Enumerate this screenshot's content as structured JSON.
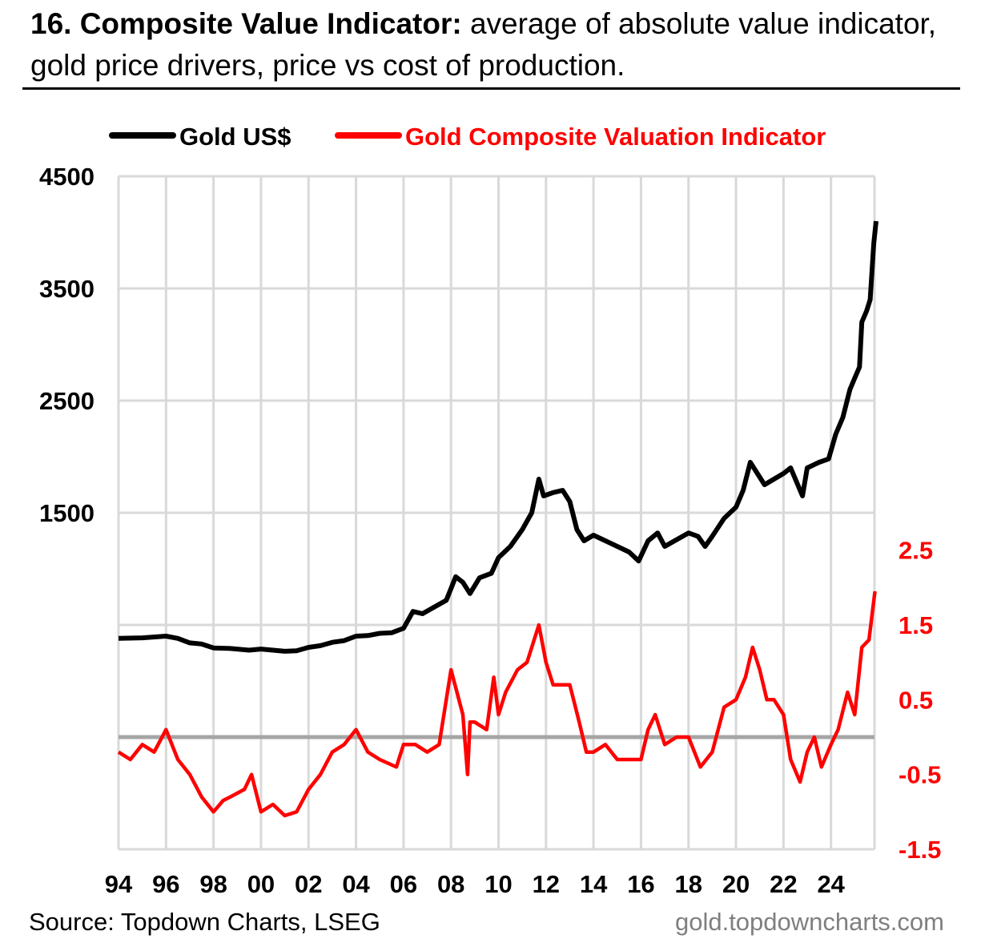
{
  "title": {
    "bold": "16. Composite Value Indicator:",
    "rest": " average of absolute value indicator, gold price drivers, price vs cost of production."
  },
  "footer": {
    "source": "Source: Topdown Charts, LSEG",
    "site": "gold.topdowncharts.com"
  },
  "colors": {
    "gold": "#000000",
    "composite": "#ff0000",
    "grid": "#d9d9d9",
    "zero": "#a6a6a6"
  },
  "chart_data": {
    "type": "line",
    "legend": [
      "Gold US$",
      "Gold Composite Valuation Indicator"
    ],
    "legend_position": "top",
    "x_ticks": [
      "94",
      "96",
      "98",
      "00",
      "02",
      "04",
      "06",
      "08",
      "10",
      "12",
      "14",
      "16",
      "18",
      "20",
      "22",
      "24"
    ],
    "xlim": [
      1994,
      2026
    ],
    "y_left": {
      "ticks": [
        "4500",
        "3500",
        "2500",
        "1500"
      ],
      "ylim": [
        -1500,
        4500
      ]
    },
    "y_right": {
      "ticks": [
        "2.5",
        "1.5",
        "0.5",
        "-0.5",
        "-1.5"
      ],
      "ylim": [
        -1.5,
        7.5
      ]
    },
    "series": [
      {
        "name": "Gold US$",
        "axis": "left",
        "x": [
          1994,
          1995,
          1996,
          1996.5,
          1997,
          1997.5,
          1998,
          1998.7,
          1999.5,
          2000,
          2000.5,
          2001,
          2001.5,
          2002,
          2002.5,
          2003,
          2003.5,
          2004,
          2004.5,
          2005,
          2005.5,
          2006,
          2006.4,
          2006.8,
          2007.3,
          2007.8,
          2008.2,
          2008.5,
          2008.8,
          2009.2,
          2009.7,
          2010,
          2010.5,
          2011,
          2011.4,
          2011.7,
          2011.9,
          2012.3,
          2012.7,
          2013,
          2013.3,
          2013.6,
          2014,
          2014.5,
          2015,
          2015.5,
          2015.9,
          2016.3,
          2016.7,
          2017,
          2017.5,
          2018,
          2018.4,
          2018.7,
          2019,
          2019.5,
          2020,
          2020.3,
          2020.6,
          2020.9,
          2021.2,
          2021.6,
          2022,
          2022.3,
          2022.8,
          2023,
          2023.5,
          2023.9,
          2024.2,
          2024.5,
          2024.8,
          2025,
          2025.2,
          2025.3,
          2025.5,
          2025.65,
          2025.8,
          2025.9
        ],
        "values": [
          380,
          385,
          400,
          380,
          340,
          330,
          295,
          290,
          275,
          285,
          275,
          265,
          270,
          300,
          315,
          345,
          360,
          400,
          405,
          425,
          430,
          470,
          620,
          600,
          660,
          720,
          930,
          880,
          780,
          920,
          960,
          1100,
          1200,
          1350,
          1500,
          1800,
          1650,
          1680,
          1700,
          1600,
          1350,
          1250,
          1300,
          1250,
          1200,
          1150,
          1070,
          1250,
          1320,
          1200,
          1260,
          1320,
          1290,
          1200,
          1290,
          1450,
          1550,
          1700,
          1950,
          1850,
          1750,
          1800,
          1850,
          1900,
          1650,
          1900,
          1950,
          1980,
          2200,
          2350,
          2600,
          2700,
          2800,
          3200,
          3300,
          3400,
          3900,
          4100
        ]
      },
      {
        "name": "Gold Composite Valuation Indicator",
        "axis": "right",
        "x": [
          1994,
          1994.5,
          1995,
          1995.5,
          1996,
          1996.5,
          1997,
          1997.5,
          1998,
          1998.4,
          1998.7,
          1999.3,
          1999.6,
          2000,
          2000.5,
          2001,
          2001.5,
          2002,
          2002.5,
          2003,
          2003.5,
          2004,
          2004.5,
          2005,
          2005.7,
          2006,
          2006.5,
          2007,
          2007.5,
          2008,
          2008.5,
          2008.7,
          2008.8,
          2009,
          2009.5,
          2009.8,
          2010,
          2010.3,
          2010.8,
          2011.2,
          2011.7,
          2012,
          2012.3,
          2013,
          2013.4,
          2013.7,
          2014,
          2014.5,
          2015,
          2015.5,
          2016,
          2016.3,
          2016.6,
          2017,
          2017.5,
          2018,
          2018.5,
          2019,
          2019.5,
          2020,
          2020.4,
          2020.7,
          2021,
          2021.3,
          2021.6,
          2022,
          2022.3,
          2022.7,
          2023,
          2023.3,
          2023.6,
          2024,
          2024.3,
          2024.7,
          2025,
          2025.3,
          2025.6,
          2025.85
        ],
        "values": [
          -0.2,
          -0.3,
          -0.1,
          -0.2,
          0.1,
          -0.3,
          -0.5,
          -0.8,
          -1.0,
          -0.85,
          -0.8,
          -0.7,
          -0.5,
          -1.0,
          -0.9,
          -1.05,
          -1.0,
          -0.7,
          -0.5,
          -0.2,
          -0.1,
          0.1,
          -0.2,
          -0.3,
          -0.4,
          -0.1,
          -0.1,
          -0.2,
          -0.1,
          0.9,
          0.3,
          -0.5,
          0.2,
          0.2,
          0.1,
          0.8,
          0.3,
          0.6,
          0.9,
          1.0,
          1.5,
          1.0,
          0.7,
          0.7,
          0.2,
          -0.2,
          -0.2,
          -0.1,
          -0.3,
          -0.3,
          -0.3,
          0.1,
          0.3,
          -0.1,
          0.0,
          0.0,
          -0.4,
          -0.2,
          0.4,
          0.5,
          0.8,
          1.2,
          0.9,
          0.5,
          0.5,
          0.3,
          -0.3,
          -0.6,
          -0.2,
          0.0,
          -0.4,
          -0.1,
          0.1,
          0.6,
          0.3,
          1.2,
          1.3,
          1.95
        ]
      }
    ]
  }
}
